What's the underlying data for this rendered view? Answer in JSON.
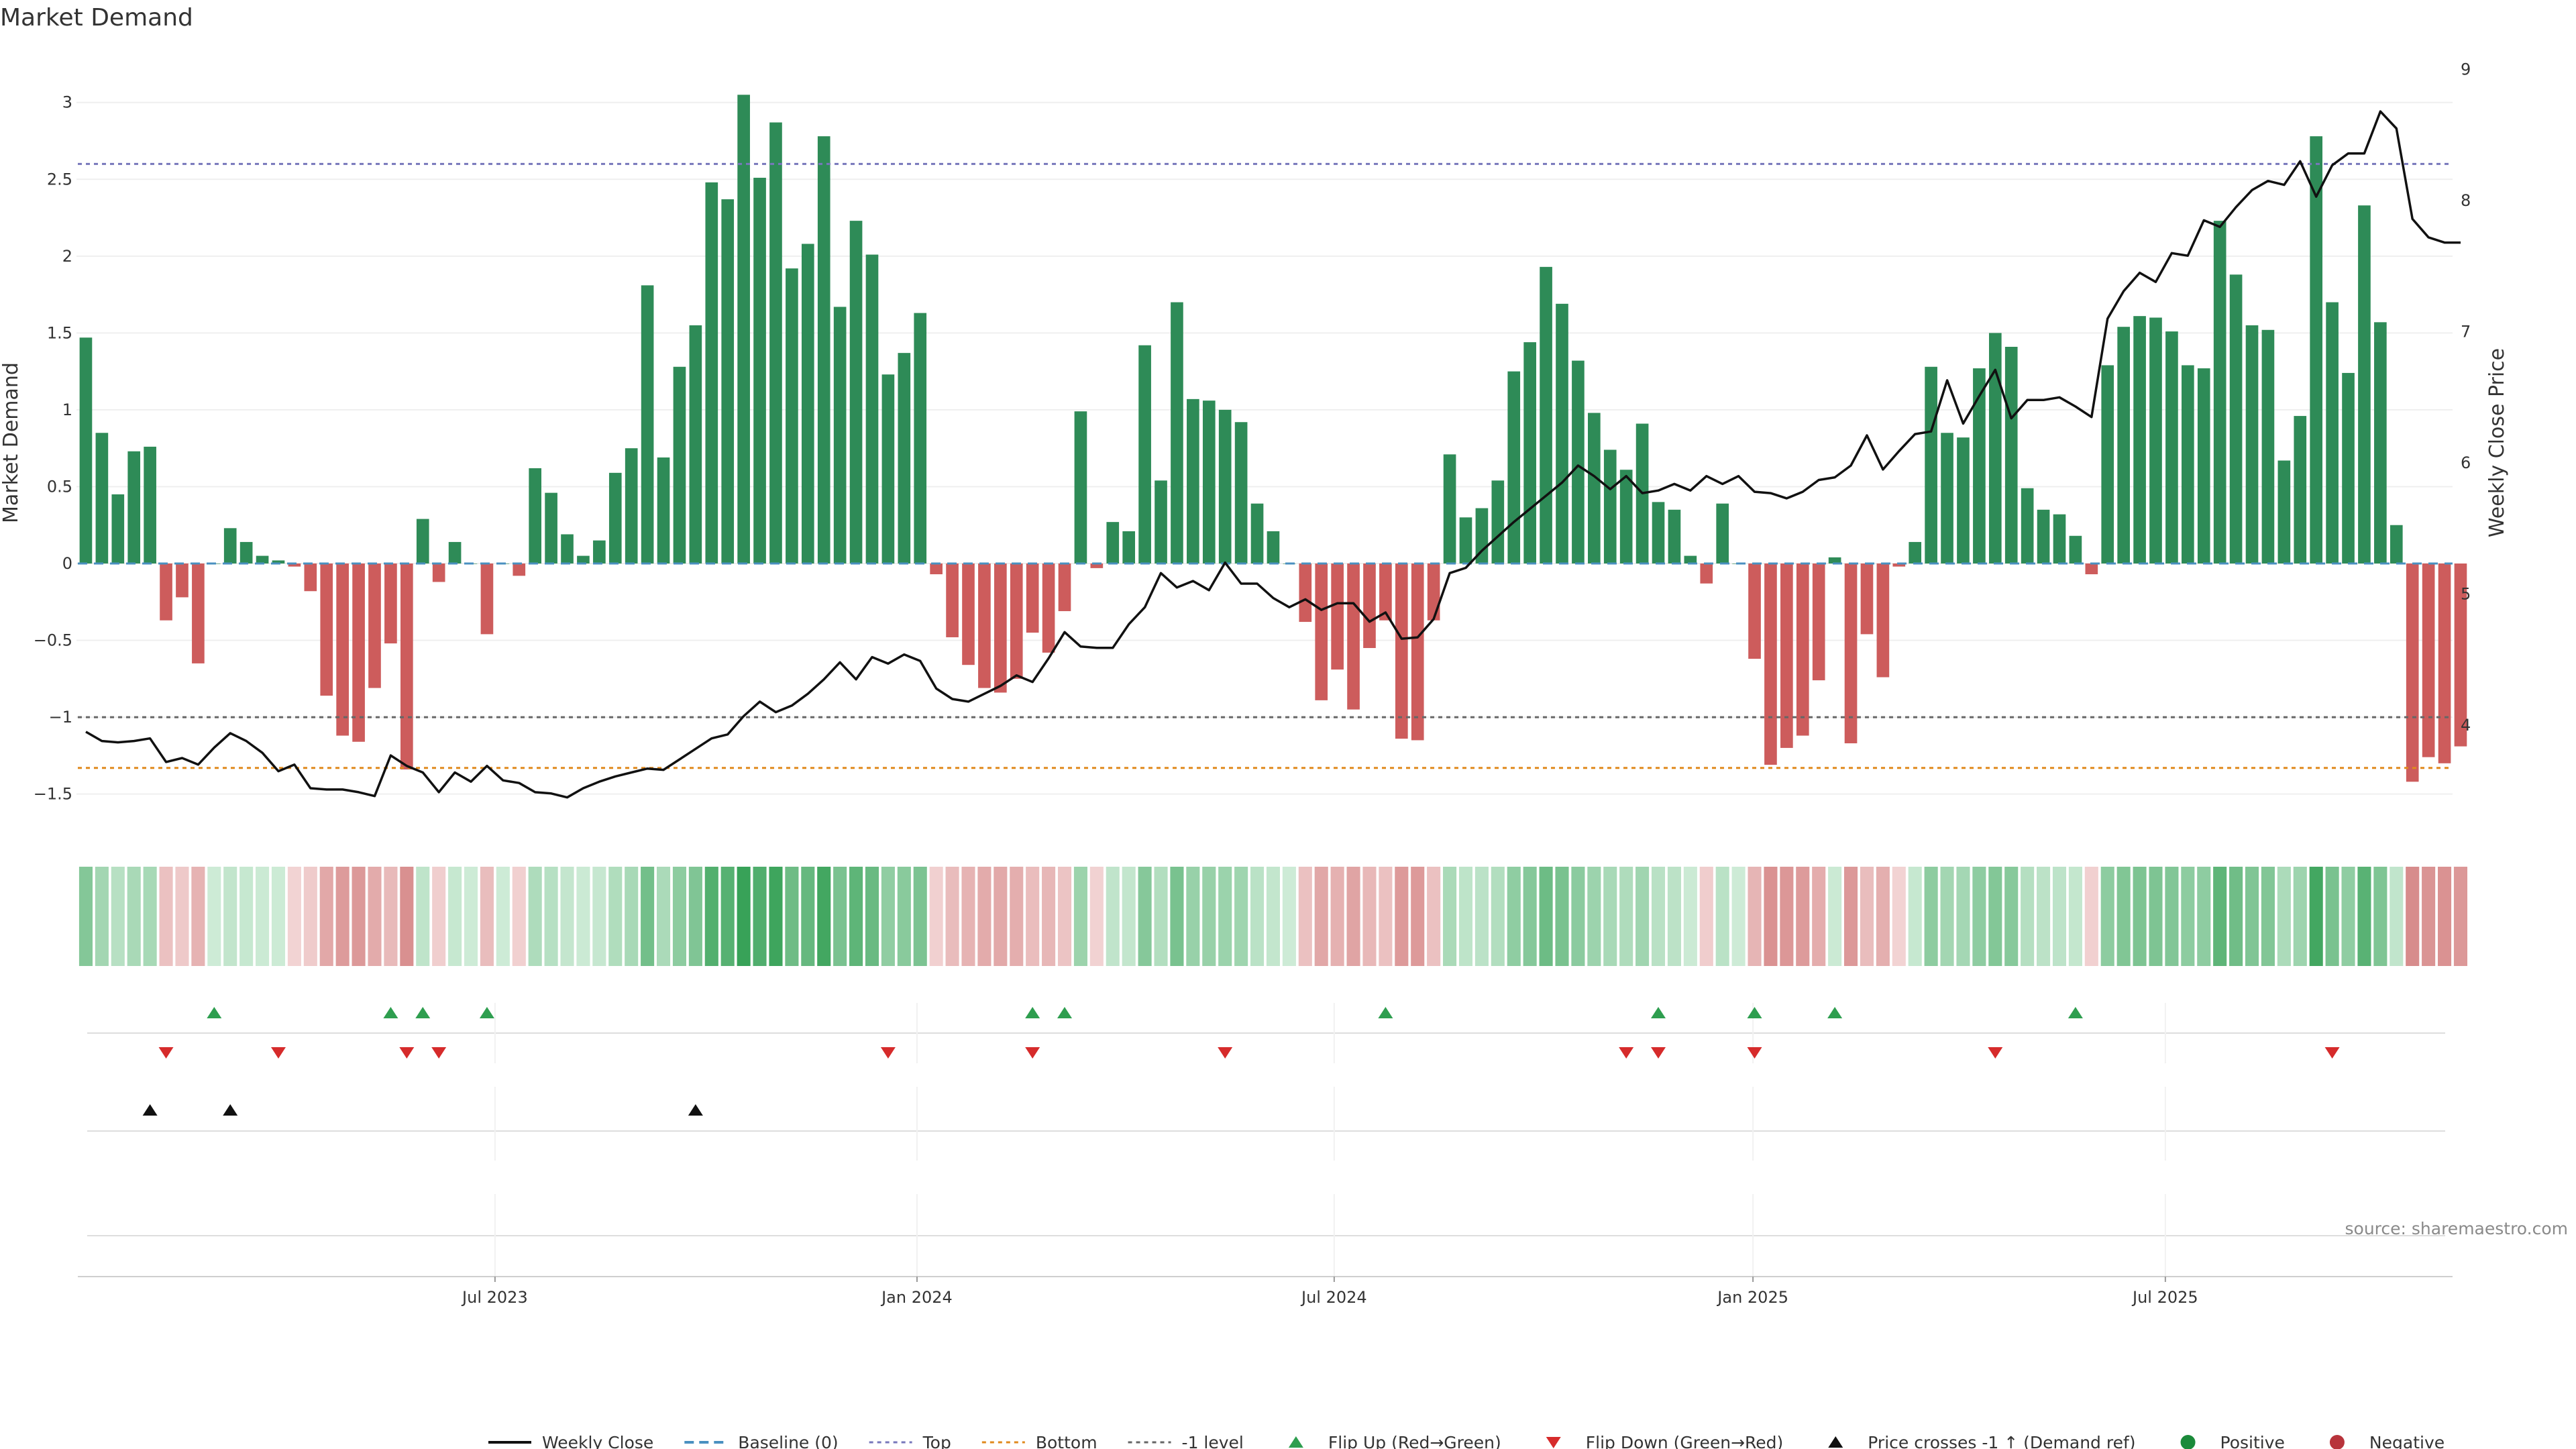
{
  "chart_data": {
    "type": "bar",
    "title": "Market Demand",
    "ylabel": "Market Demand",
    "y2label": "Weekly Close Price",
    "ylim": [
      -1.65,
      3.3
    ],
    "y2lim": [
      3.3,
      9.1
    ],
    "yticks": [
      3,
      2.5,
      2,
      1.5,
      1,
      0.5,
      0,
      -0.5,
      -1,
      -1.5
    ],
    "ytick_labels": [
      "3",
      "2.5",
      "2",
      "1.5",
      "1",
      "0.5",
      "0",
      "−0.5",
      "−1",
      "−1.5"
    ],
    "y2ticks": [
      9,
      8,
      7,
      6,
      5,
      4
    ],
    "x_start": "2023-01-03",
    "week_count": 148,
    "x_ticks": [
      {
        "label": "Jul 2023",
        "week": 26
      },
      {
        "label": "Jan 2024",
        "week": 52.3
      },
      {
        "label": "Jul 2024",
        "week": 78.3
      },
      {
        "label": "Jan 2025",
        "week": 104.4
      },
      {
        "label": "Jul 2025",
        "week": 130.1
      }
    ],
    "reference_lines": [
      {
        "name": "Top",
        "value": 2.6,
        "color": "#7777bb",
        "dash": "8,6"
      },
      {
        "name": "Bottom",
        "value": -1.33,
        "color": "#e08a1e",
        "dash": "8,6"
      },
      {
        "name": "-1 level",
        "value": -1.0,
        "color": "#666666",
        "dash": "8,6"
      }
    ],
    "series": [
      {
        "name": "Market Demand",
        "type": "bar",
        "axis": "left",
        "values": [
          1.47,
          0.85,
          0.45,
          0.73,
          0.76,
          -0.37,
          -0.22,
          -0.65,
          0.0,
          0.23,
          0.14,
          0.05,
          0.02,
          -0.02,
          -0.18,
          -0.86,
          -1.12,
          -1.16,
          -0.81,
          -0.52,
          -1.34,
          0.29,
          -0.12,
          0.14,
          0.0,
          -0.46,
          0.0,
          -0.08,
          0.62,
          0.46,
          0.19,
          0.05,
          0.15,
          0.59,
          0.75,
          1.81,
          0.69,
          1.28,
          1.55,
          2.48,
          2.37,
          3.05,
          2.51,
          2.87,
          1.92,
          2.08,
          2.78,
          1.67,
          2.23,
          2.01,
          1.23,
          1.37,
          1.63,
          -0.07,
          -0.48,
          -0.66,
          -0.81,
          -0.84,
          -0.75,
          -0.45,
          -0.58,
          -0.31,
          0.99,
          -0.03,
          0.27,
          0.21,
          1.42,
          0.54,
          1.7,
          1.07,
          1.06,
          1.0,
          0.92,
          0.39,
          0.21,
          0.0,
          -0.38,
          -0.89,
          -0.69,
          -0.95,
          -0.55,
          -0.37,
          -1.14,
          -1.15,
          -0.37,
          0.71,
          0.3,
          0.36,
          0.54,
          1.25,
          1.44,
          1.93,
          1.69,
          1.32,
          0.98,
          0.74,
          0.61,
          0.91,
          0.4,
          0.35,
          0.05,
          -0.13,
          0.39,
          0.0,
          -0.62,
          -1.31,
          -1.2,
          -1.12,
          -0.76,
          0.04,
          -1.17,
          -0.46,
          -0.74,
          -0.02,
          0.14,
          1.28,
          0.85,
          0.82,
          1.27,
          1.5,
          1.41,
          0.49,
          0.35,
          0.32,
          0.18,
          -0.07,
          1.29,
          1.54,
          1.61,
          1.6,
          1.51,
          1.29,
          1.27,
          2.23,
          1.88,
          1.55,
          1.52,
          0.67,
          0.96,
          2.78,
          1.7,
          1.24,
          2.33,
          1.57,
          0.25,
          -1.42,
          -1.26,
          -1.3,
          -1.19
        ]
      },
      {
        "name": "Weekly Close",
        "type": "line",
        "axis": "right",
        "values": [
          3.95,
          3.88,
          3.87,
          3.88,
          3.9,
          3.72,
          3.75,
          3.7,
          3.83,
          3.94,
          3.88,
          3.79,
          3.65,
          3.7,
          3.52,
          3.51,
          3.51,
          3.49,
          3.46,
          3.77,
          3.69,
          3.64,
          3.49,
          3.64,
          3.57,
          3.69,
          3.58,
          3.56,
          3.49,
          3.48,
          3.45,
          3.52,
          3.57,
          3.61,
          3.64,
          3.67,
          3.66,
          3.74,
          3.82,
          3.9,
          3.93,
          4.07,
          4.18,
          4.1,
          4.15,
          4.24,
          4.35,
          4.48,
          4.35,
          4.52,
          4.47,
          4.54,
          4.49,
          4.28,
          4.2,
          4.18,
          4.24,
          4.3,
          4.38,
          4.33,
          4.51,
          4.71,
          4.6,
          4.59,
          4.59,
          4.77,
          4.9,
          5.16,
          5.05,
          5.1,
          5.03,
          5.24,
          5.08,
          5.08,
          4.97,
          4.9,
          4.96,
          4.88,
          4.93,
          4.93,
          4.79,
          4.86,
          4.66,
          4.67,
          4.81,
          5.16,
          5.2,
          5.33,
          5.44,
          5.55,
          5.65,
          5.75,
          5.85,
          5.98,
          5.9,
          5.8,
          5.9,
          5.77,
          5.79,
          5.84,
          5.79,
          5.9,
          5.84,
          5.9,
          5.78,
          5.77,
          5.73,
          5.78,
          5.87,
          5.89,
          5.98,
          6.21,
          5.95,
          6.09,
          6.22,
          6.24,
          6.63,
          6.3,
          6.51,
          6.71,
          6.34,
          6.48,
          6.48,
          6.5,
          6.43,
          6.35,
          7.1,
          7.31,
          7.45,
          7.38,
          7.6,
          7.58,
          7.85,
          7.8,
          7.95,
          8.08,
          8.15,
          8.12,
          8.3,
          8.03,
          8.27,
          8.36,
          8.36,
          8.68,
          8.55,
          7.86,
          7.72,
          7.68,
          7.68
        ]
      }
    ],
    "strip_note": "shaded strip of Market Demand per week (green positive, red negative)",
    "flip_up_weeks": [
      8,
      19,
      21,
      25,
      59,
      61,
      81,
      98,
      104,
      109,
      124
    ],
    "flip_down_weeks": [
      5,
      12,
      20,
      22,
      50,
      59,
      71,
      96,
      98,
      104,
      119,
      140
    ],
    "price_cross_weeks": [
      4,
      9,
      38
    ],
    "colors": {
      "positive": "#2e8b57",
      "negative": "#cd5c5c",
      "line": "#111111",
      "baseline": "#4a90c0",
      "flip_up": "#2e9e4f",
      "flip_down": "#d62b2b",
      "cross": "#111111",
      "dot_pos": "#1b8a3a",
      "dot_neg": "#b8333b"
    },
    "legend": [
      {
        "label": "Weekly Close",
        "kind": "solid",
        "color": "#111111"
      },
      {
        "label": "Baseline (0)",
        "kind": "dash",
        "color": "#4a90c0"
      },
      {
        "label": "Top",
        "kind": "dot",
        "color": "#7777bb"
      },
      {
        "label": "Bottom",
        "kind": "dot",
        "color": "#e08a1e"
      },
      {
        "label": "-1 level",
        "kind": "dot",
        "color": "#666666"
      },
      {
        "label": "Flip Up (Red→Green)",
        "kind": "tri-up",
        "color": "#2e9e4f"
      },
      {
        "label": "Flip Down (Green→Red)",
        "kind": "tri-down",
        "color": "#d62b2b"
      },
      {
        "label": "Price crosses -1 ↑ (Demand ref)",
        "kind": "tri-up",
        "color": "#111111"
      },
      {
        "label": "Positive",
        "kind": "dot-marker",
        "color": "#1b8a3a"
      },
      {
        "label": "Negative",
        "kind": "dot-marker",
        "color": "#b8333b"
      }
    ],
    "source": "source: sharemaestro.com"
  }
}
